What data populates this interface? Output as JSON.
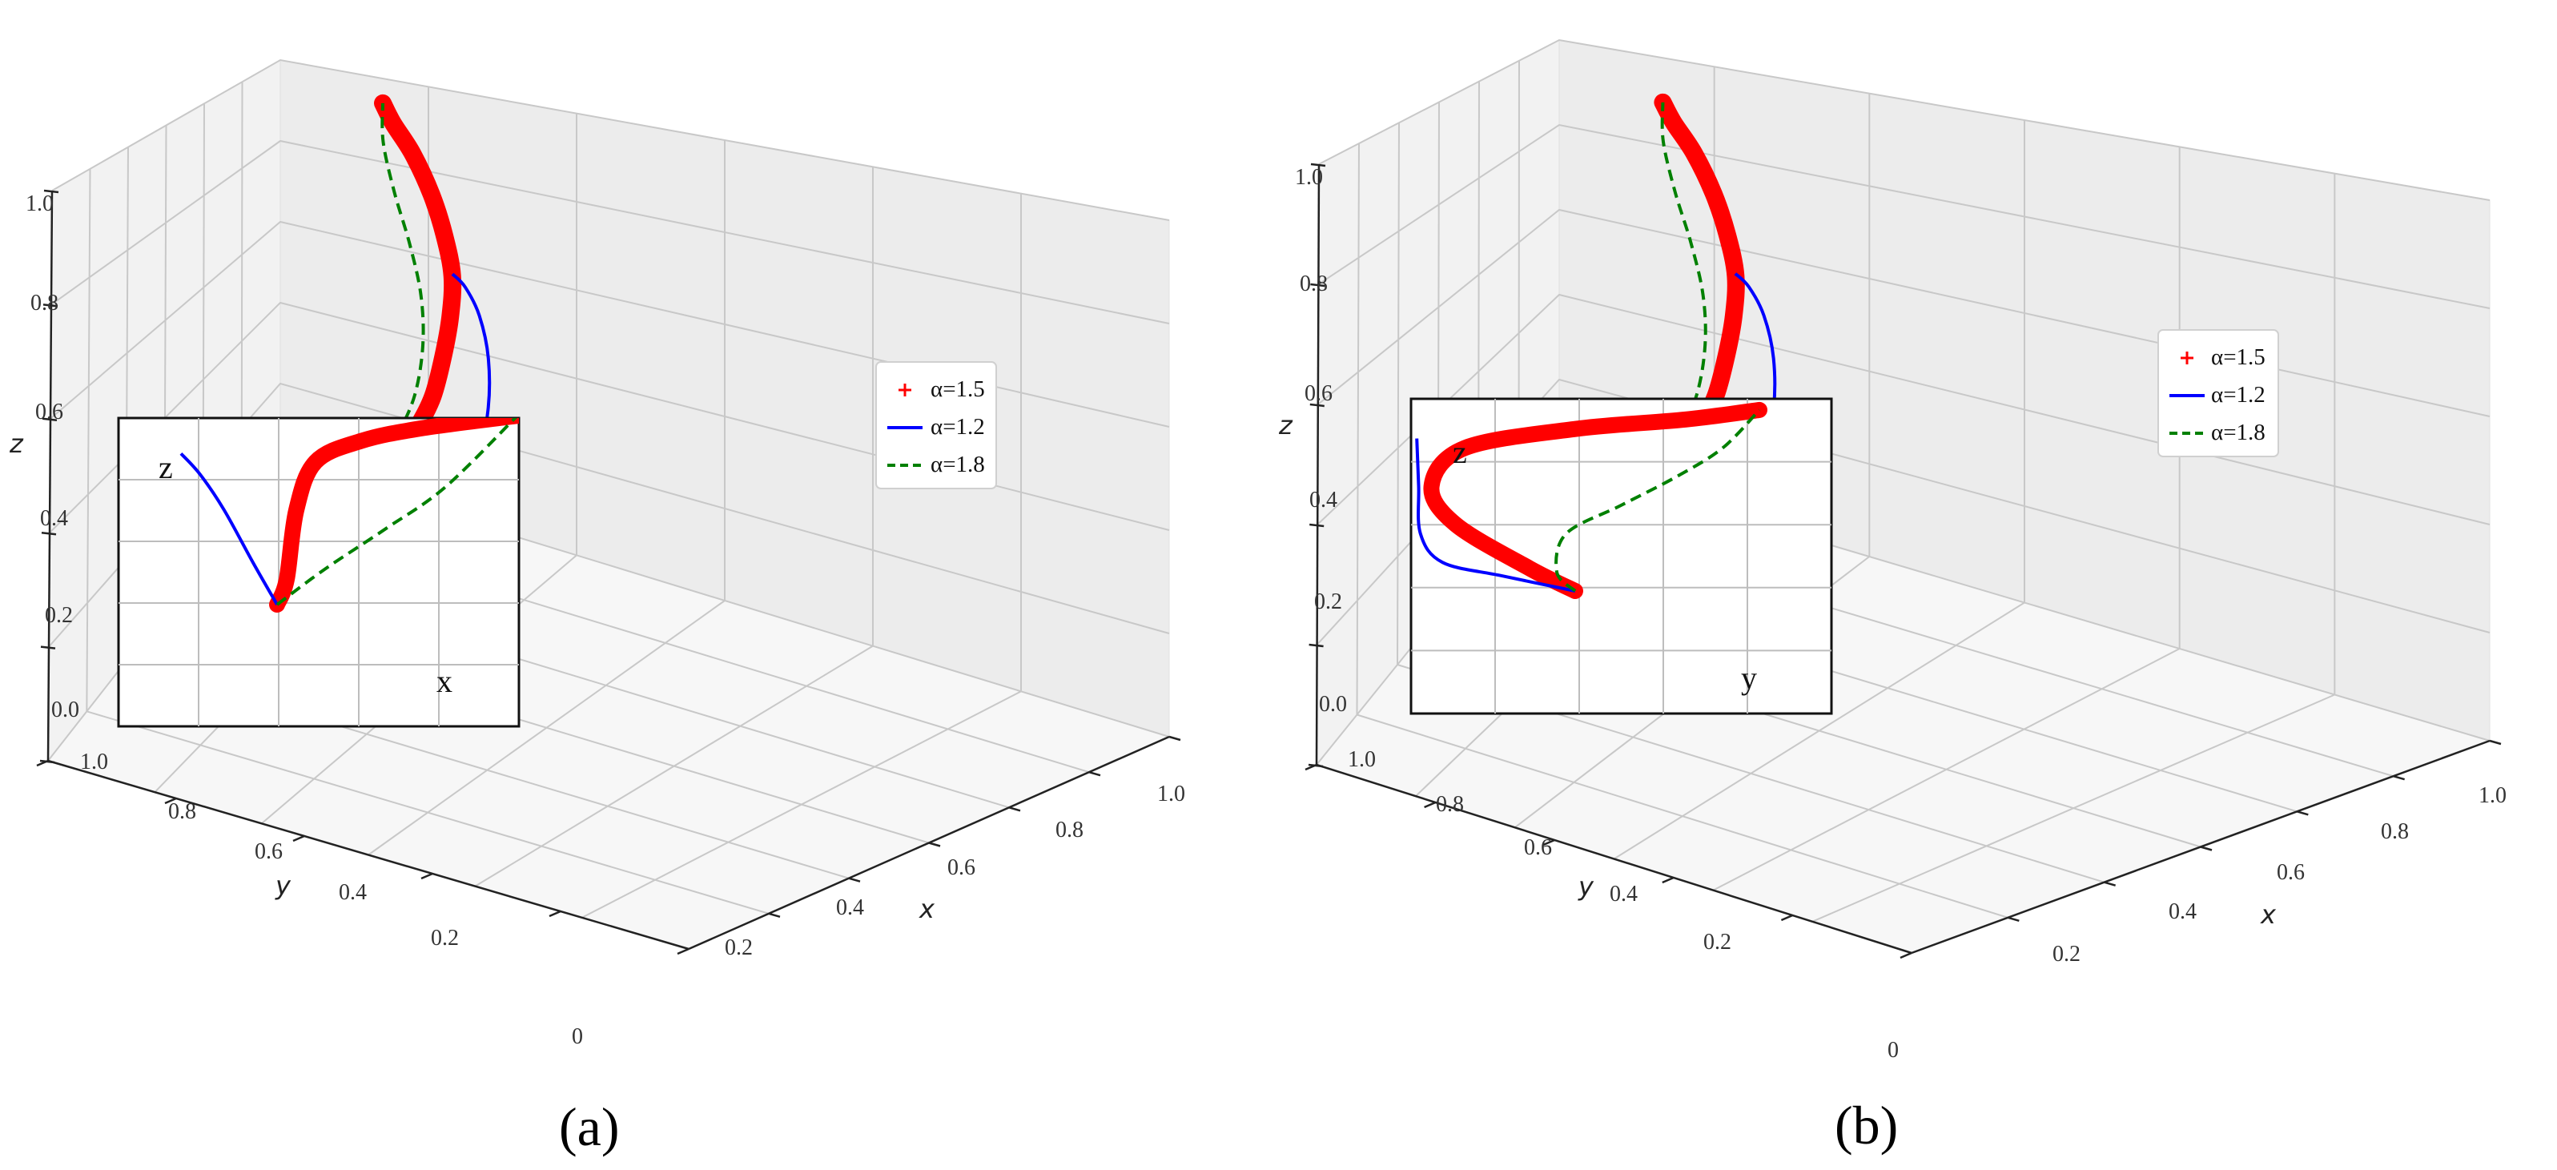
{
  "chart_data": [
    {
      "type": "line",
      "panel_label": "(a)",
      "axes": {
        "xlabel": "x",
        "ylabel": "y",
        "zlabel": "z",
        "xlim": [
          0,
          1
        ],
        "ylim": [
          0,
          1
        ],
        "zlim": [
          0,
          1
        ],
        "x_ticks": [
          "0.2",
          "0.4",
          "0.6",
          "0.8",
          "1.0"
        ],
        "y_ticks": [
          "0",
          "0.2",
          "0.4",
          "0.6",
          "0.8",
          "1.0"
        ],
        "z_ticks": [
          "0.0",
          "0.2",
          "0.4",
          "0.6",
          "0.8",
          "1.0"
        ],
        "grid": true
      },
      "legend": {
        "placement": "right",
        "entries": [
          "α=1.5",
          "α=1.2",
          "α=1.8"
        ]
      },
      "series": [
        {
          "name": "α=1.5",
          "color": "#ff0000",
          "style": "markers-plus",
          "points": [
            [
              0.15,
              0.85,
              0.28
            ],
            [
              0.2,
              0.8,
              0.3
            ],
            [
              0.25,
              0.72,
              0.32
            ],
            [
              0.3,
              0.62,
              0.36
            ],
            [
              0.35,
              0.52,
              0.42
            ],
            [
              0.38,
              0.42,
              0.5
            ],
            [
              0.4,
              0.35,
              0.58
            ],
            [
              0.4,
              0.3,
              0.66
            ],
            [
              0.36,
              0.28,
              0.74
            ],
            [
              0.3,
              0.28,
              0.82
            ],
            [
              0.22,
              0.32,
              0.9
            ],
            [
              0.14,
              0.38,
              0.96
            ],
            [
              0.1,
              0.42,
              1.0
            ]
          ]
        },
        {
          "name": "α=1.2",
          "color": "#0000ff",
          "style": "solid",
          "points": [
            [
              0.15,
              0.85,
              0.28
            ],
            [
              0.3,
              0.75,
              0.24
            ],
            [
              0.45,
              0.62,
              0.24
            ],
            [
              0.55,
              0.5,
              0.3
            ],
            [
              0.58,
              0.38,
              0.4
            ],
            [
              0.56,
              0.26,
              0.5
            ],
            [
              0.5,
              0.16,
              0.58
            ],
            [
              0.42,
              0.08,
              0.63
            ],
            [
              0.35,
              0.02,
              0.65
            ]
          ]
        },
        {
          "name": "α=1.8",
          "color": "#008000",
          "style": "dashed",
          "points": [
            [
              0.15,
              0.85,
              0.28
            ],
            [
              0.22,
              0.72,
              0.34
            ],
            [
              0.28,
              0.6,
              0.42
            ],
            [
              0.3,
              0.5,
              0.52
            ],
            [
              0.28,
              0.44,
              0.62
            ],
            [
              0.22,
              0.4,
              0.72
            ],
            [
              0.15,
              0.4,
              0.82
            ],
            [
              0.1,
              0.41,
              0.92
            ],
            [
              0.1,
              0.42,
              1.0
            ]
          ]
        }
      ],
      "inset": {
        "xlabel": "x",
        "ylabel": "z",
        "series": [
          {
            "name": "α=1.5",
            "points": [
              [
                0.0,
                0.0
              ],
              [
                0.04,
                0.12
              ],
              [
                0.08,
                0.45
              ],
              [
                0.16,
                0.68
              ],
              [
                0.35,
                0.78
              ],
              [
                0.6,
                0.84
              ],
              [
                1.0,
                0.9
              ]
            ]
          },
          {
            "name": "α=1.2",
            "points": [
              [
                0.0,
                0.0
              ],
              [
                -0.1,
                0.2
              ],
              [
                -0.22,
                0.45
              ],
              [
                -0.32,
                0.62
              ],
              [
                -0.4,
                0.72
              ]
            ]
          },
          {
            "name": "α=1.8",
            "points": [
              [
                0.0,
                0.0
              ],
              [
                0.2,
                0.17
              ],
              [
                0.45,
                0.36
              ],
              [
                0.7,
                0.56
              ],
              [
                1.0,
                0.9
              ]
            ]
          }
        ]
      }
    },
    {
      "type": "line",
      "panel_label": "(b)",
      "axes": {
        "xlabel": "x",
        "ylabel": "y",
        "zlabel": "z",
        "xlim": [
          0,
          1
        ],
        "ylim": [
          0,
          1
        ],
        "zlim": [
          0,
          1
        ],
        "x_ticks": [
          "0.2",
          "0.4",
          "0.6",
          "0.8",
          "1.0"
        ],
        "y_ticks": [
          "0",
          "0.2",
          "0.4",
          "0.6",
          "0.8",
          "1.0"
        ],
        "z_ticks": [
          "0.0",
          "0.2",
          "0.4",
          "0.6",
          "0.8",
          "1.0"
        ],
        "grid": true
      },
      "legend": {
        "placement": "right",
        "entries": [
          "α=1.5",
          "α=1.2",
          "α=1.8"
        ]
      },
      "series": [
        {
          "name": "α=1.5",
          "color": "#ff0000",
          "style": "markers-plus",
          "points": [
            [
              0.15,
              0.85,
              0.28
            ],
            [
              0.2,
              0.8,
              0.3
            ],
            [
              0.25,
              0.72,
              0.32
            ],
            [
              0.3,
              0.62,
              0.36
            ],
            [
              0.35,
              0.52,
              0.42
            ],
            [
              0.38,
              0.42,
              0.5
            ],
            [
              0.4,
              0.35,
              0.58
            ],
            [
              0.4,
              0.3,
              0.66
            ],
            [
              0.36,
              0.28,
              0.74
            ],
            [
              0.3,
              0.28,
              0.82
            ],
            [
              0.22,
              0.32,
              0.9
            ],
            [
              0.14,
              0.38,
              0.96
            ],
            [
              0.1,
              0.42,
              1.0
            ]
          ]
        },
        {
          "name": "α=1.2",
          "color": "#0000ff",
          "style": "solid",
          "points": [
            [
              0.15,
              0.85,
              0.28
            ],
            [
              0.3,
              0.75,
              0.24
            ],
            [
              0.45,
              0.62,
              0.24
            ],
            [
              0.55,
              0.5,
              0.3
            ],
            [
              0.58,
              0.38,
              0.4
            ],
            [
              0.56,
              0.26,
              0.5
            ],
            [
              0.5,
              0.16,
              0.58
            ],
            [
              0.42,
              0.08,
              0.63
            ],
            [
              0.35,
              0.02,
              0.65
            ]
          ]
        },
        {
          "name": "α=1.8",
          "color": "#008000",
          "style": "dashed",
          "points": [
            [
              0.15,
              0.85,
              0.28
            ],
            [
              0.22,
              0.72,
              0.34
            ],
            [
              0.28,
              0.6,
              0.42
            ],
            [
              0.3,
              0.5,
              0.52
            ],
            [
              0.28,
              0.44,
              0.62
            ],
            [
              0.22,
              0.4,
              0.72
            ],
            [
              0.15,
              0.4,
              0.82
            ],
            [
              0.1,
              0.41,
              0.92
            ],
            [
              0.1,
              0.42,
              1.0
            ]
          ]
        }
      ],
      "inset": {
        "xlabel": "y",
        "ylabel": "z",
        "series": [
          {
            "name": "α=1.5",
            "points": [
              [
                0.0,
                0.0
              ],
              [
                -0.25,
                0.12
              ],
              [
                -0.65,
                0.35
              ],
              [
                -0.78,
                0.55
              ],
              [
                -0.6,
                0.75
              ],
              [
                0.0,
                0.85
              ],
              [
                0.6,
                0.9
              ],
              [
                1.0,
                0.95
              ]
            ]
          },
          {
            "name": "α=1.2",
            "points": [
              [
                0.0,
                0.0
              ],
              [
                -0.4,
                0.08
              ],
              [
                -0.72,
                0.15
              ],
              [
                -0.84,
                0.3
              ],
              [
                -0.85,
                0.55
              ],
              [
                -0.86,
                0.8
              ]
            ]
          },
          {
            "name": "α=1.8",
            "points": [
              [
                0.0,
                0.0
              ],
              [
                -0.1,
                0.1
              ],
              [
                -0.05,
                0.3
              ],
              [
                0.25,
                0.45
              ],
              [
                0.55,
                0.6
              ],
              [
                0.8,
                0.75
              ],
              [
                1.0,
                0.95
              ]
            ]
          }
        ]
      }
    }
  ]
}
